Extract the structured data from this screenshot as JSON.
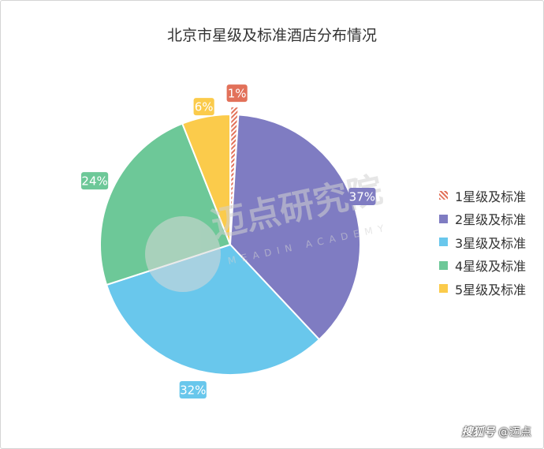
{
  "chart_data": {
    "type": "pie",
    "title": "北京市星级及标准酒店分布情况",
    "categories": [
      "1星级及标准",
      "2星级及标准",
      "3星级及标准",
      "4星级及标准",
      "5星级及标准"
    ],
    "values": [
      1,
      37,
      32,
      24,
      6
    ],
    "data_labels": [
      "1%",
      "37%",
      "32%",
      "24%",
      "6%"
    ],
    "colors": [
      "#E2715A",
      "#7F7CC2",
      "#69C7EC",
      "#6DC898",
      "#FBCB4B"
    ],
    "exploded": [
      "1星级及标准"
    ],
    "legend_position": "right"
  },
  "watermark": {
    "main": "迈点研究院",
    "sub": "MEADIN ACADEMY",
    "footer": "@迈点"
  }
}
